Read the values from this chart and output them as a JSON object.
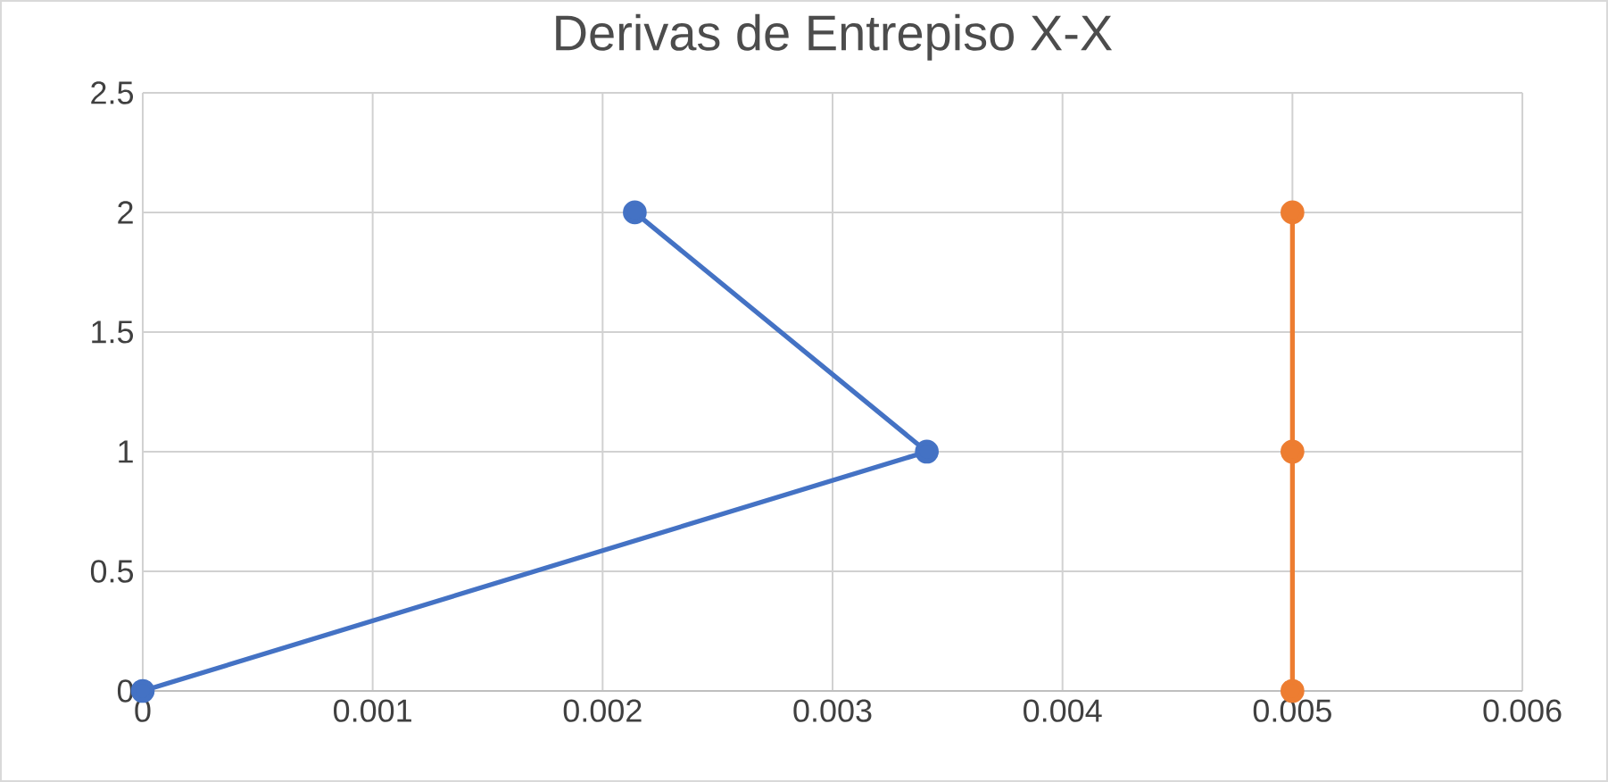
{
  "chart_data": {
    "type": "line",
    "title": "Derivas de Entrepiso X-X",
    "series": [
      {
        "color": "#4472c4",
        "x": [
          0,
          0.00341,
          0.00214
        ],
        "values": [
          0,
          1,
          2
        ]
      },
      {
        "color": "#ed7d31",
        "x": [
          0.005,
          0.005,
          0.005
        ],
        "values": [
          0,
          1,
          2
        ]
      }
    ],
    "xlim": [
      0,
      0.006
    ],
    "xticks": [
      0,
      0.001,
      0.002,
      0.003,
      0.004,
      0.005,
      0.006
    ],
    "ylim": [
      0,
      2.5
    ],
    "yticks": [
      0,
      0.5,
      1,
      1.5,
      2,
      2.5
    ],
    "grid": true,
    "marker": "circle",
    "line_style": "solid"
  }
}
